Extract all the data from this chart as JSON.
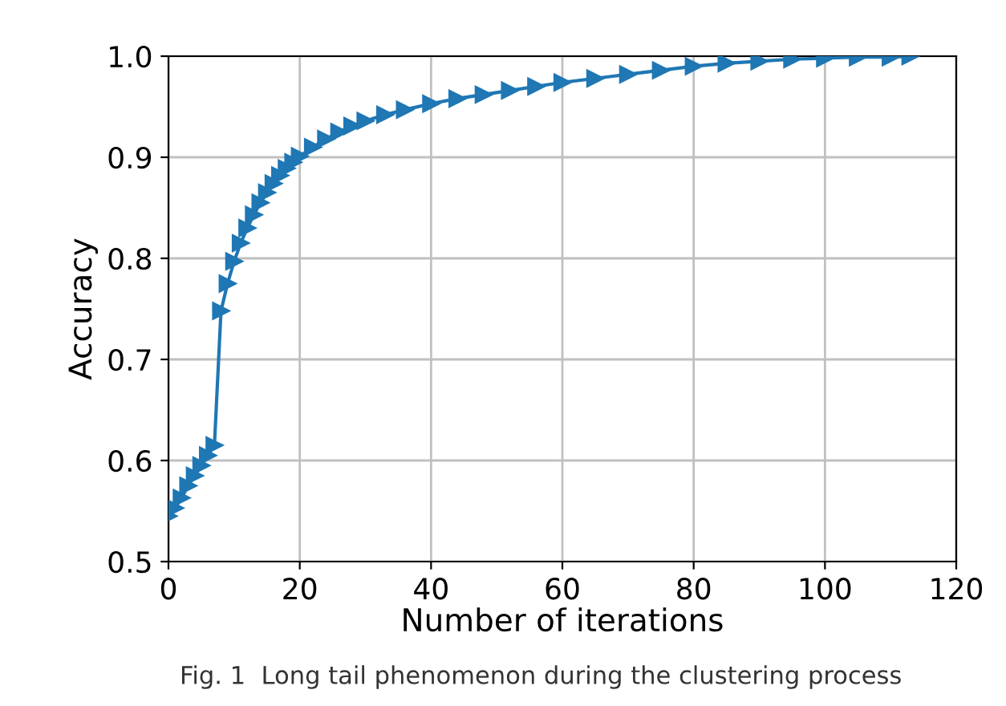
{
  "chart_data": {
    "type": "line",
    "xlabel": "Number of iterations",
    "ylabel": "Accuracy",
    "annotations": [
      "Fig. 1  Long tail phenomenon during the clustering process"
    ],
    "series": [
      {
        "color": "#1f77b4",
        "x": [
          0,
          1,
          2,
          3,
          4,
          5,
          6,
          7,
          8,
          9,
          10,
          11,
          12,
          13,
          14,
          15,
          16,
          17,
          18,
          19,
          20,
          22,
          24,
          26,
          28,
          30,
          33,
          36,
          40,
          44,
          48,
          52,
          56,
          60,
          65,
          70,
          75,
          80,
          85,
          90,
          95,
          100,
          105,
          110,
          113
        ],
        "values": [
          0.545,
          0.553,
          0.563,
          0.575,
          0.585,
          0.595,
          0.605,
          0.615,
          0.748,
          0.775,
          0.797,
          0.815,
          0.83,
          0.843,
          0.855,
          0.865,
          0.874,
          0.882,
          0.889,
          0.895,
          0.901,
          0.91,
          0.918,
          0.925,
          0.931,
          0.936,
          0.942,
          0.947,
          0.953,
          0.958,
          0.962,
          0.966,
          0.97,
          0.974,
          0.978,
          0.982,
          0.986,
          0.99,
          0.993,
          0.995,
          0.997,
          0.998,
          0.999,
          0.999,
          1.0
        ]
      }
    ],
    "xlim": [
      0,
      120
    ],
    "xticks": [
      0,
      20,
      40,
      60,
      80,
      100,
      120
    ],
    "ylim": [
      0.5,
      1.0
    ],
    "yticks": [
      {
        "value": 0.5,
        "label": "0.5"
      },
      {
        "value": 0.6,
        "label": "0.6"
      },
      {
        "value": 0.7,
        "label": "0.7"
      },
      {
        "value": 0.8,
        "label": "0.8"
      },
      {
        "value": 0.9,
        "label": "0.9"
      },
      {
        "value": 1.0,
        "label": "1.0"
      }
    ],
    "grid": true,
    "marker": "triangle",
    "line_style": "solid"
  }
}
